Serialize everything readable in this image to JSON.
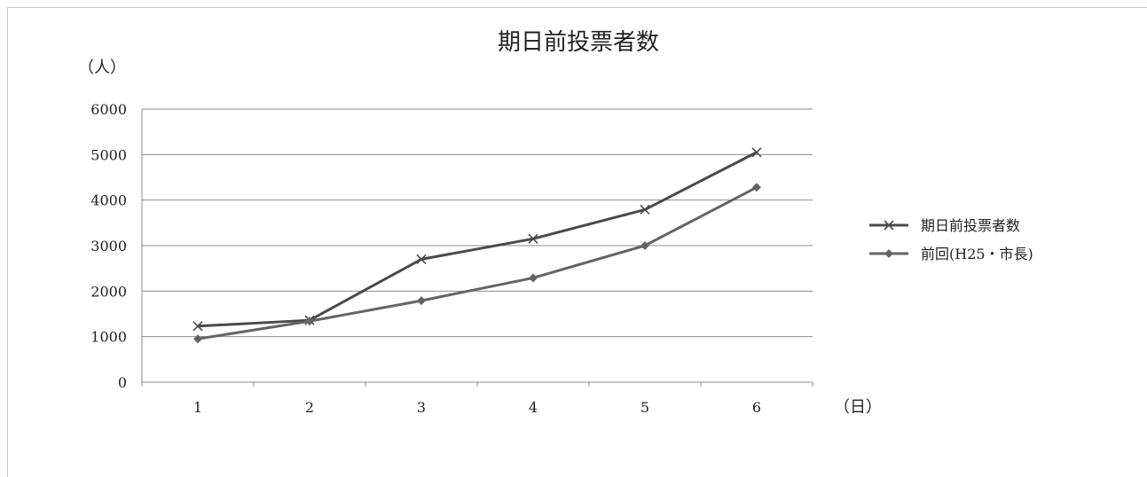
{
  "chart_data": {
    "type": "line",
    "title": "期日前投票者数",
    "y_unit_label": "（人）",
    "x_unit_label": "（日）",
    "categories": [
      "1",
      "2",
      "3",
      "4",
      "5",
      "6"
    ],
    "ylim": [
      0,
      6000
    ],
    "yticks": [
      "0",
      "1000",
      "2000",
      "3000",
      "4000",
      "5000",
      "6000"
    ],
    "grid": true,
    "legend_position": "right",
    "series": [
      {
        "name": "期日前投票者数",
        "values": [
          1230,
          1360,
          2700,
          3150,
          3790,
          5050
        ],
        "marker": "x",
        "color": "#4a4a4a"
      },
      {
        "name": "前回(H25・市長)",
        "values": [
          950,
          1340,
          1790,
          2290,
          3000,
          4280
        ],
        "marker": "diamond",
        "color": "#646464"
      }
    ]
  }
}
